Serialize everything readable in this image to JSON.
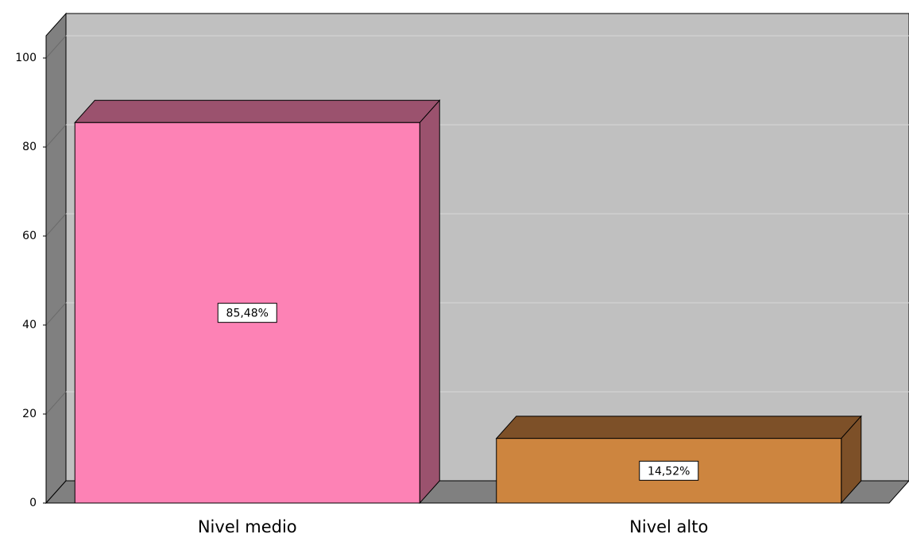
{
  "chart_data": {
    "type": "bar3d",
    "categories": [
      "Nivel medio",
      "Nivel alto"
    ],
    "values": [
      85.48,
      14.52
    ],
    "value_labels": [
      "85,48%",
      "14,52%"
    ],
    "colors": [
      "#fd82b5",
      "#cd853f"
    ],
    "side_colors": [
      "#9b526e",
      "#7d5028"
    ],
    "ylim": [
      0,
      105
    ],
    "yticks": [
      0,
      20,
      40,
      60,
      80,
      100
    ],
    "grid": true
  }
}
